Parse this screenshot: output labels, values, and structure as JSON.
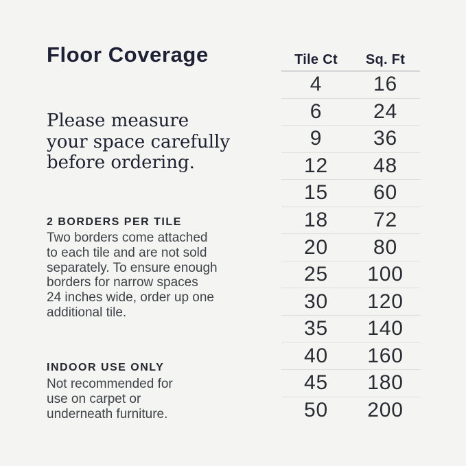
{
  "page": {
    "background_color": "#f4f4f2",
    "accent_text_color": "#1e2136"
  },
  "left_column": {
    "title": "Floor Coverage",
    "lead_paragraph": "Please measure\nyour space carefully\nbefore ordering.",
    "sections": [
      {
        "heading": "2 BORDERS PER TILE",
        "body": "Two borders come attached\nto each tile and are not sold\nseparately. To ensure enough\nborders for narrow spaces\n24 inches wide, order up one\nadditional tile."
      },
      {
        "heading": "INDOOR USE ONLY",
        "body": "Not recommended for\nuse on carpet or\nunderneath furniture."
      }
    ]
  },
  "table": {
    "headers": {
      "col1": "Tile Ct",
      "col2": "Sq. Ft"
    },
    "rows": [
      {
        "tile": "4",
        "sqft": "16"
      },
      {
        "tile": "6",
        "sqft": "24"
      },
      {
        "tile": "9",
        "sqft": "36"
      },
      {
        "tile": "12",
        "sqft": "48"
      },
      {
        "tile": "15",
        "sqft": "60"
      },
      {
        "tile": "18",
        "sqft": "72"
      },
      {
        "tile": "20",
        "sqft": "80"
      },
      {
        "tile": "25",
        "sqft": "100"
      },
      {
        "tile": "30",
        "sqft": "120"
      },
      {
        "tile": "35",
        "sqft": "140"
      },
      {
        "tile": "40",
        "sqft": "160"
      },
      {
        "tile": "45",
        "sqft": "180"
      },
      {
        "tile": "50",
        "sqft": "200"
      }
    ]
  }
}
